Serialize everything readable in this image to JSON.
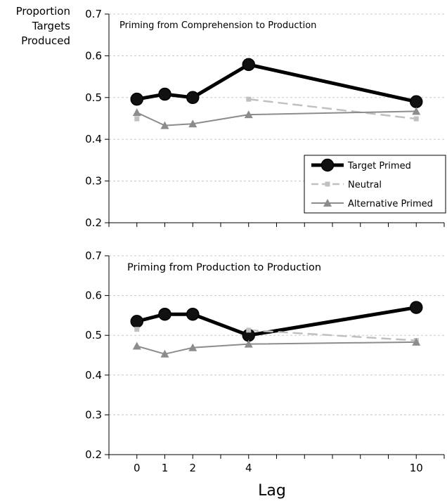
{
  "y_title": [
    "Proportion",
    "Targets",
    "Produced"
  ],
  "x_title": "Lag",
  "colors": {
    "target": "#000000",
    "neutral": "#c0c0c0",
    "alternative": "#8c8c8c",
    "grid": "#c8c8c8"
  },
  "chart_data": [
    {
      "type": "line",
      "title": "Priming from Comprehension to Production",
      "ylim": [
        0.2,
        0.7
      ],
      "yticks": [
        "0.2",
        "0.3",
        "0.4",
        "0.5",
        "0.6",
        "0.7"
      ],
      "x": [
        0,
        1,
        2,
        4,
        10
      ],
      "xlim": [
        -1,
        11
      ],
      "grid": true,
      "legend": "bottom-right",
      "series": [
        {
          "key": "target",
          "name": "Target Primed",
          "segments": [
            [
              0,
              1,
              2,
              4,
              10
            ]
          ],
          "values": [
            0.496,
            0.508,
            0.5,
            0.579,
            0.49
          ]
        },
        {
          "key": "neutral",
          "name": "Neutral",
          "segments": [
            [
              0
            ],
            [
              4,
              10
            ]
          ],
          "values": [
            0.449,
            null,
            null,
            0.496,
            0.449
          ]
        },
        {
          "key": "alternative",
          "name": "Alternative Primed",
          "segments": [
            [
              0,
              1,
              2,
              4,
              10
            ]
          ],
          "values": [
            0.464,
            0.433,
            0.437,
            0.459,
            0.467
          ]
        }
      ]
    },
    {
      "type": "line",
      "title": "Priming from Production to Production",
      "ylim": [
        0.2,
        0.7
      ],
      "yticks": [
        "0.2",
        "0.3",
        "0.4",
        "0.5",
        "0.6",
        "0.7"
      ],
      "x": [
        0,
        1,
        2,
        4,
        10
      ],
      "xlim": [
        -1,
        11
      ],
      "xticklabels": [
        "0",
        "1",
        "2",
        "4",
        "10"
      ],
      "grid": true,
      "series": [
        {
          "key": "target",
          "name": "Target Primed",
          "segments": [
            [
              0,
              1,
              2,
              4,
              10
            ]
          ],
          "values": [
            0.535,
            0.553,
            0.553,
            0.5,
            0.57
          ]
        },
        {
          "key": "neutral",
          "name": "Neutral",
          "segments": [
            [
              0
            ],
            [
              4,
              10
            ]
          ],
          "values": [
            0.515,
            null,
            null,
            0.513,
            0.487
          ]
        },
        {
          "key": "alternative",
          "name": "Alternative Primed",
          "segments": [
            [
              0,
              1,
              2,
              4,
              10
            ]
          ],
          "values": [
            0.473,
            0.453,
            0.469,
            0.478,
            0.483
          ]
        }
      ]
    }
  ]
}
